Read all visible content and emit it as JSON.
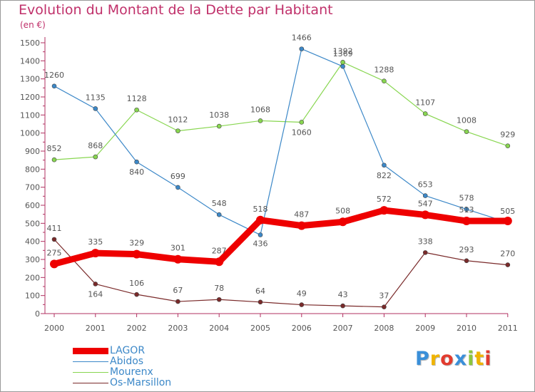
{
  "title": "Evolution du Montant de la Dette par Habitant",
  "unit": "(en €)",
  "logo": {
    "letters": [
      "P",
      "r",
      "o",
      "x",
      "i",
      "t",
      "i"
    ],
    "colors": [
      "#3a8fd9",
      "#f0b400",
      "#e23b2e",
      "#3a8fd9",
      "#8cc63e",
      "#f0b400",
      "#e23b2e"
    ]
  },
  "chart_data": {
    "type": "line",
    "categories": [
      "2000",
      "2001",
      "2002",
      "2003",
      "2004",
      "2005",
      "2006",
      "2007",
      "2008",
      "2009",
      "2010",
      "2011"
    ],
    "ylim": [
      0,
      1500
    ],
    "yticks": [
      0,
      100,
      200,
      300,
      400,
      500,
      600,
      700,
      800,
      900,
      1000,
      1100,
      1200,
      1300,
      1400,
      1500
    ],
    "grid": false,
    "legend_position": "bottom-left",
    "series": [
      {
        "name": "LAGOR",
        "color": "#ee0000",
        "values": [
          275,
          335,
          329,
          301,
          287,
          518,
          487,
          508,
          572,
          547,
          513,
          513
        ],
        "labels": [
          "275",
          "335",
          "329",
          "301",
          "287",
          "518",
          "487",
          "508",
          "572",
          "547",
          "513",
          ""
        ]
      },
      {
        "name": "Abidos",
        "color": "#3c88c8",
        "values": [
          1260,
          1135,
          840,
          699,
          548,
          436,
          1466,
          1369,
          822,
          653,
          578,
          505
        ],
        "labels": [
          "1260",
          "1135",
          "840",
          "699",
          "548",
          "436",
          "1466",
          "1369",
          "822",
          "653",
          "578",
          "505"
        ]
      },
      {
        "name": "Mourenx",
        "color": "#88d650",
        "values": [
          852,
          868,
          1128,
          1012,
          1038,
          1068,
          1060,
          1392,
          1288,
          1107,
          1008,
          929
        ],
        "labels": [
          "852",
          "868",
          "1128",
          "1012",
          "1038",
          "1068",
          "1060",
          "1392",
          "1288",
          "1107",
          "1008",
          "929"
        ]
      },
      {
        "name": "Os-Marsillon",
        "color": "#7a2a2a",
        "values": [
          411,
          164,
          106,
          67,
          78,
          64,
          49,
          43,
          37,
          338,
          293,
          270
        ],
        "labels": [
          "411",
          "164",
          "106",
          "67",
          "78",
          "64",
          "49",
          "43",
          "37",
          "338",
          "293",
          "270"
        ]
      }
    ]
  }
}
